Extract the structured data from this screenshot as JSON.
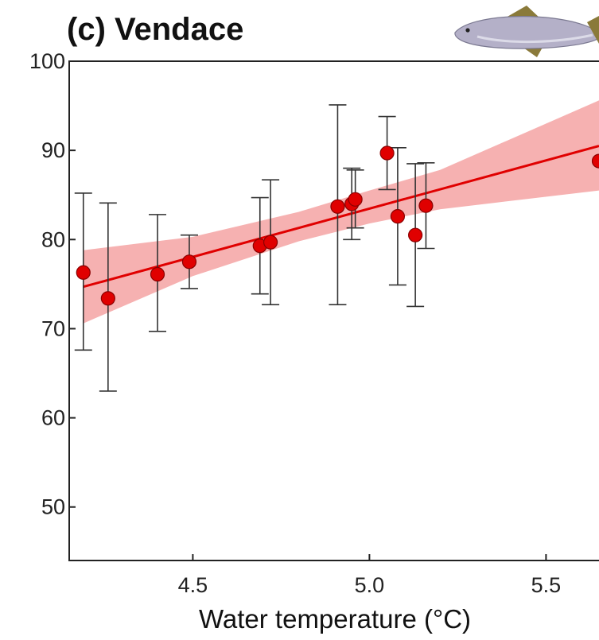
{
  "chart_data": {
    "type": "scatter",
    "title": "(c) Vendace",
    "xlabel": "Water temperature  (°C)",
    "ylabel": "",
    "xlim": [
      4.15,
      5.65
    ],
    "ylim": [
      44,
      100
    ],
    "x_ticks": [
      4.5,
      5.0,
      5.5
    ],
    "x_tick_labels": [
      "4.5",
      "5.0",
      "5.5"
    ],
    "y_ticks": [
      50,
      60,
      70,
      80,
      90,
      100
    ],
    "y_tick_labels": [
      "50",
      "60",
      "70",
      "80",
      "90",
      "100"
    ],
    "grid": false,
    "legend": "none",
    "points": [
      {
        "x": 4.19,
        "y": 76.3,
        "lo": 67.6,
        "hi": 85.2
      },
      {
        "x": 4.26,
        "y": 73.4,
        "lo": 63.0,
        "hi": 84.1
      },
      {
        "x": 4.4,
        "y": 76.1,
        "lo": 69.7,
        "hi": 82.8
      },
      {
        "x": 4.49,
        "y": 77.5,
        "lo": 74.5,
        "hi": 80.5
      },
      {
        "x": 4.69,
        "y": 79.3,
        "lo": 73.9,
        "hi": 84.7
      },
      {
        "x": 4.72,
        "y": 79.7,
        "lo": 72.7,
        "hi": 86.7
      },
      {
        "x": 4.91,
        "y": 83.7,
        "lo": 72.7,
        "hi": 95.1
      },
      {
        "x": 4.95,
        "y": 84.0,
        "lo": 80.0,
        "hi": 88.0
      },
      {
        "x": 4.96,
        "y": 84.5,
        "lo": 81.3,
        "hi": 87.8
      },
      {
        "x": 5.05,
        "y": 89.7,
        "lo": 85.6,
        "hi": 93.8
      },
      {
        "x": 5.08,
        "y": 82.6,
        "lo": 74.9,
        "hi": 90.3
      },
      {
        "x": 5.13,
        "y": 80.5,
        "lo": 72.5,
        "hi": 88.5
      },
      {
        "x": 5.16,
        "y": 83.8,
        "lo": 79.0,
        "hi": 88.6
      },
      {
        "x": 5.65,
        "y": 88.8
      }
    ],
    "fit_line": {
      "x": [
        4.19,
        5.65
      ],
      "y": [
        74.7,
        90.5
      ]
    },
    "confidence_band": {
      "x": [
        4.19,
        4.5,
        4.8,
        5.0,
        5.2,
        5.65
      ],
      "upper": [
        78.8,
        80.3,
        83.1,
        85.5,
        87.8,
        95.6
      ],
      "lower": [
        70.6,
        75.9,
        79.8,
        81.8,
        83.4,
        85.5
      ]
    },
    "colors": {
      "points": "#e00000",
      "line": "#e00000",
      "band": "#f5a3a3",
      "errorbars": "#333333"
    },
    "icon": "fish-icon"
  }
}
